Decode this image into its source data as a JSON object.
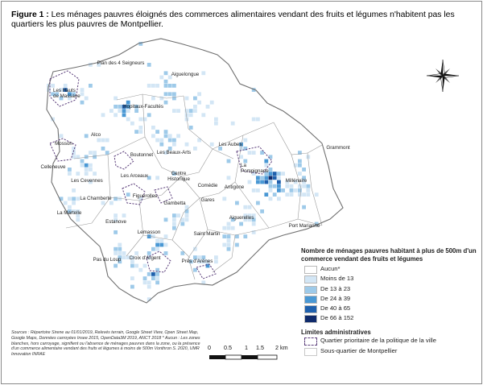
{
  "figure": {
    "label": "Figure 1 :",
    "caption": " Les ménages pauvres éloignés des commerces alimentaires vendant des fruits et légumes n'habitent pas les quartiers les plus pauvres de Montpellier."
  },
  "colors": {
    "aucun": "#ffffff",
    "moins13": "#d3e6f5",
    "de13a23": "#9ecae9",
    "de24a39": "#4a98d4",
    "de40a65": "#1f60ad",
    "de66a152": "#0f2a6b",
    "boundary": "#7a7a7a",
    "priority": "#5a3d7a"
  },
  "districts": [
    "Plan des 4 Seigneurs",
    "Aiguelongue",
    "Les Hauts de Massane",
    "Hopitaux-Facultés",
    "Alco",
    "Mosson",
    "Boutonnet",
    "Les Beaux-Arts",
    "Les Aubes",
    "Grammont",
    "Celleneuve",
    "Les Cevennes",
    "Les Arceaux",
    "Centre Historique",
    "La Pompignane",
    "Millénaire",
    "Comédie",
    "Antigone",
    "La Chamberte",
    "Figuerolles",
    "Gambetta",
    "Gares",
    "La Martelle",
    "Estanove",
    "Aiguerelles",
    "Port Marianne",
    "Lemasson",
    "Saint Martin",
    "Pas du Loup",
    "Croix d'Argent",
    "Près d'Arènes"
  ],
  "legend": {
    "title": "Nombre de ménages pauvres habitant à plus de 500m d'un commerce vendant des fruits et légumes",
    "classes": [
      "Aucun*",
      "Moins de 13",
      "De 13 à 23",
      "De 24 à 39",
      "De 40 à 65",
      "De 66 à 152"
    ],
    "admin_title": "Limites administratives",
    "admin_items": [
      "Quartier prioritaire de la politique de la ville",
      "Sous-quartier de Montpellier"
    ]
  },
  "sources": "Sources : Répertoire Sirene au 01/01/2019, Relevés terrain, Google Street View, Open Street Map, Google Maps, Données carroyées Insee 2015, OpenData3M 2019, ANCT 2018 * Aucun : Les zones blanches, hors carroyage, signifient ou l'absence de ménages pauvres dans la zone, ou la présence d'un commerce alimentaire vendant des fruits et légumes à moins de 500m Vonthron S. 2020, UMR Innovation INRAE",
  "scale": {
    "ticks": [
      "0",
      "0.5",
      "1",
      "1.5",
      "2 km"
    ]
  }
}
